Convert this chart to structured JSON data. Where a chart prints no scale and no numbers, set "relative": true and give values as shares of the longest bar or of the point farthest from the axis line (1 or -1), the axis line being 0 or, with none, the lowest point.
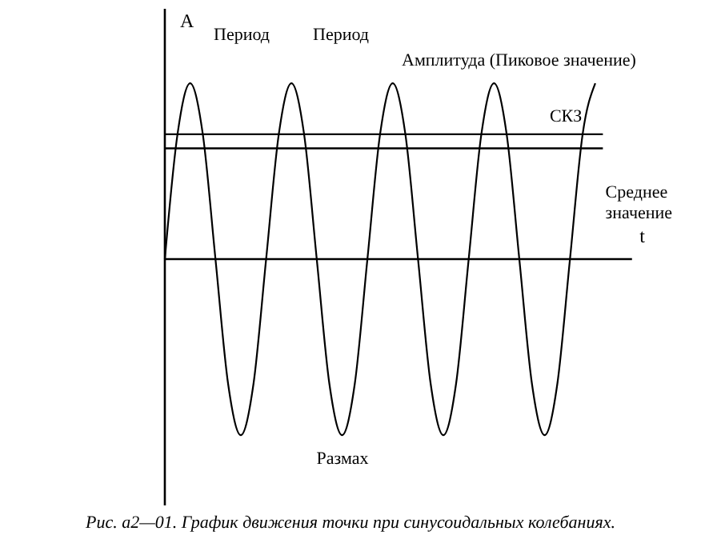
{
  "chart_data": {
    "type": "line",
    "relative": true,
    "xlabel": "t",
    "ylabel": "A",
    "categories": [
      null,
      null,
      null,
      null,
      null,
      null,
      null,
      null,
      null,
      null,
      null,
      null,
      null,
      null,
      null,
      null,
      null,
      null,
      null,
      null,
      null,
      null,
      null,
      null,
      null,
      null,
      null,
      null,
      null,
      null,
      null,
      null,
      null,
      null,
      null
    ],
    "series": [
      {
        "color": "#000000",
        "values": [
          0,
          0.71,
          1,
          0.71,
          0,
          -0.71,
          -1,
          -0.71,
          0,
          0.71,
          1,
          0.71,
          0,
          -0.71,
          -1,
          -0.71,
          0,
          0.71,
          1,
          0.71,
          0,
          -0.71,
          -1,
          -0.71,
          0,
          0.71,
          1,
          0.71,
          0,
          -0.71,
          -1,
          -0.71,
          0,
          0.71,
          1
        ]
      }
    ],
    "ref_lines": [
      {
        "axis": "y",
        "value": 0.71,
        "label": "СКЗ",
        "color": "#000000"
      },
      {
        "axis": "y",
        "value": 0.63,
        "label": "Среднее значение",
        "color": "#000000"
      }
    ],
    "annotations": [
      "Период",
      "Период",
      "Амплитуда (Пиковое значение)",
      "Размах",
      "Рис. а2—01. График движения точки при синусоидальных колебаниях."
    ],
    "grid": false,
    "marker": "none",
    "line_style": "solid"
  }
}
